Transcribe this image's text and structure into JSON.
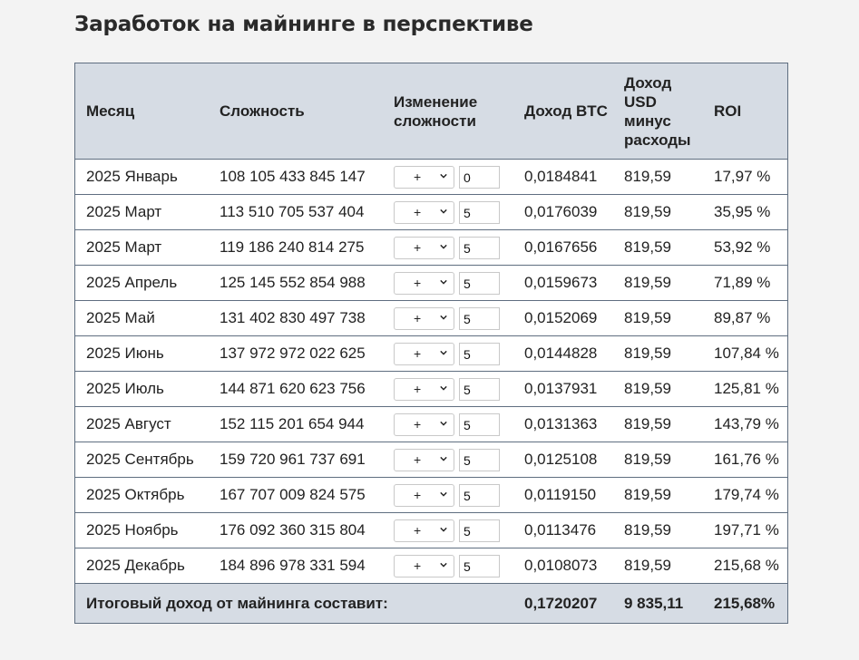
{
  "title": "Заработок на майнинге в перспективе",
  "columns": {
    "month": "Месяц",
    "difficulty": "Сложность",
    "change": "Изменение сложности",
    "btc": "Доход BTC",
    "usd": "Доход USD минус расходы",
    "roi": "ROI"
  },
  "rows": [
    {
      "month": "2025 Январь",
      "difficulty": "108 105 433 845 147",
      "sign": "+",
      "change": "0",
      "btc": "0,0184841",
      "usd": "819,59",
      "roi": "17,97 %"
    },
    {
      "month": "2025 Март",
      "difficulty": "113 510 705 537 404",
      "sign": "+",
      "change": "5",
      "btc": "0,0176039",
      "usd": "819,59",
      "roi": "35,95 %"
    },
    {
      "month": "2025 Март",
      "difficulty": "119 186 240 814 275",
      "sign": "+",
      "change": "5",
      "btc": "0,0167656",
      "usd": "819,59",
      "roi": "53,92 %"
    },
    {
      "month": "2025 Апрель",
      "difficulty": "125 145 552 854 988",
      "sign": "+",
      "change": "5",
      "btc": "0,0159673",
      "usd": "819,59",
      "roi": "71,89 %"
    },
    {
      "month": "2025 Май",
      "difficulty": "131 402 830 497 738",
      "sign": "+",
      "change": "5",
      "btc": "0,0152069",
      "usd": "819,59",
      "roi": "89,87 %"
    },
    {
      "month": "2025 Июнь",
      "difficulty": "137 972 972 022 625",
      "sign": "+",
      "change": "5",
      "btc": "0,0144828",
      "usd": "819,59",
      "roi": "107,84 %"
    },
    {
      "month": "2025 Июль",
      "difficulty": "144 871 620 623 756",
      "sign": "+",
      "change": "5",
      "btc": "0,0137931",
      "usd": "819,59",
      "roi": "125,81 %"
    },
    {
      "month": "2025 Август",
      "difficulty": "152 115 201 654 944",
      "sign": "+",
      "change": "5",
      "btc": "0,0131363",
      "usd": "819,59",
      "roi": "143,79 %"
    },
    {
      "month": "2025 Сентябрь",
      "difficulty": "159 720 961 737 691",
      "sign": "+",
      "change": "5",
      "btc": "0,0125108",
      "usd": "819,59",
      "roi": "161,76 %"
    },
    {
      "month": "2025 Октябрь",
      "difficulty": "167 707 009 824 575",
      "sign": "+",
      "change": "5",
      "btc": "0,0119150",
      "usd": "819,59",
      "roi": "179,74 %"
    },
    {
      "month": "2025 Ноябрь",
      "difficulty": "176 092 360 315 804",
      "sign": "+",
      "change": "5",
      "btc": "0,0113476",
      "usd": "819,59",
      "roi": "197,71 %"
    },
    {
      "month": "2025 Декабрь",
      "difficulty": "184 896 978 331 594",
      "sign": "+",
      "change": "5",
      "btc": "0,0108073",
      "usd": "819,59",
      "roi": "215,68 %"
    }
  ],
  "footer": {
    "label": "Итоговый доход от майнинга составит:",
    "btc": "0,1720207",
    "usd": "9 835,11",
    "roi": "215,68%"
  },
  "colors": {
    "header_bg": "#d6dce4",
    "border": "#5f6e80",
    "page_bg": "#f3f3f3"
  },
  "icons": {
    "select_arrow": "chevron-down-icon"
  }
}
